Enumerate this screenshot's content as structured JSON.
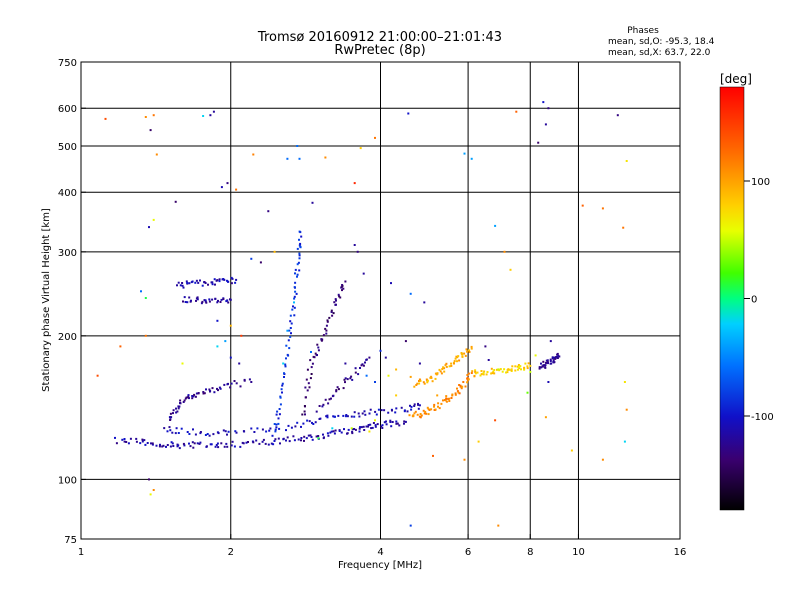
{
  "chart_data": {
    "type": "scatter",
    "title": "Tromsø 20160912 21:00:00–21:01:43",
    "subtitle": "RwPretec (8p)",
    "xlabel": "Frequency [MHz]",
    "ylabel": "Stationary phase Virtual Height [km]",
    "x_scale": "log",
    "y_scale": "log",
    "xlim": [
      1,
      16
    ],
    "ylim": [
      75,
      750
    ],
    "x_ticks": [
      1,
      2,
      4,
      6,
      8,
      10,
      16
    ],
    "x_tick_labels": [
      "1",
      "2",
      "4",
      "6",
      "8",
      "10",
      "16"
    ],
    "y_ticks": [
      75,
      100,
      200,
      300,
      400,
      500,
      600,
      750
    ],
    "y_tick_labels": [
      "75",
      "100",
      "200",
      "300",
      "400",
      "500",
      "600",
      "750"
    ],
    "grid_x": [
      2,
      4,
      6,
      8,
      10
    ],
    "grid_y": [
      100,
      200,
      300,
      400,
      500,
      600
    ],
    "stats": {
      "heading": "Phases",
      "line_o": "mean, sd,O:  -95.3, 18.4",
      "line_x": "mean, sd,X:   63.7, 22.0"
    },
    "colorbar": {
      "label": "[deg]",
      "range": [
        -180,
        180
      ],
      "ticks": [
        100,
        0,
        -100
      ],
      "tick_labels": [
        "100",
        "0",
        "-100"
      ]
    },
    "traces": [
      {
        "name": "",
        "phase": -115,
        "points": [
          [
            1.18,
            121
          ],
          [
            1.28,
            120
          ],
          [
            1.38,
            119
          ],
          [
            1.48,
            118.5
          ],
          [
            1.58,
            118
          ],
          [
            1.7,
            118
          ],
          [
            1.85,
            118
          ],
          [
            2.0,
            118.5
          ],
          [
            2.2,
            119
          ],
          [
            2.4,
            120
          ],
          [
            2.6,
            121
          ],
          [
            2.8,
            122
          ],
          [
            3.0,
            123
          ],
          [
            3.2,
            124.5
          ],
          [
            3.4,
            126
          ],
          [
            3.6,
            127.5
          ],
          [
            3.8,
            129
          ],
          [
            4.0,
            130
          ],
          [
            4.2,
            131
          ],
          [
            4.5,
            132
          ]
        ]
      },
      {
        "name": "",
        "phase": -108,
        "points": [
          [
            1.48,
            128
          ],
          [
            1.6,
            126
          ],
          [
            1.8,
            125
          ],
          [
            2.0,
            125
          ],
          [
            2.3,
            127
          ],
          [
            2.6,
            129
          ],
          [
            2.9,
            132
          ],
          [
            3.2,
            135
          ],
          [
            3.5,
            137
          ],
          [
            3.8,
            138
          ],
          [
            4.2,
            139
          ],
          [
            4.6,
            141
          ],
          [
            4.8,
            143
          ]
        ]
      },
      {
        "name": "",
        "phase": -125,
        "points": [
          [
            1.5,
            133
          ],
          [
            1.55,
            140
          ],
          [
            1.6,
            146
          ],
          [
            1.66,
            150
          ],
          [
            1.75,
            152
          ],
          [
            1.85,
            155
          ],
          [
            2.0,
            158
          ],
          [
            2.2,
            160
          ]
        ]
      },
      {
        "name": "",
        "phase": 110,
        "points": [
          [
            4.6,
            136
          ],
          [
            4.8,
            137
          ],
          [
            5.0,
            139
          ],
          [
            5.2,
            142
          ],
          [
            5.4,
            146
          ],
          [
            5.6,
            150
          ],
          [
            5.8,
            156
          ],
          [
            6.0,
            163
          ],
          [
            6.2,
            168
          ]
        ]
      },
      {
        "name": "",
        "phase": 95,
        "points": [
          [
            4.7,
            158
          ],
          [
            4.9,
            160
          ],
          [
            5.1,
            163
          ],
          [
            5.3,
            168
          ],
          [
            5.5,
            173
          ],
          [
            5.7,
            178
          ],
          [
            5.9,
            183
          ],
          [
            6.1,
            188
          ]
        ]
      },
      {
        "name": "",
        "phase": 80,
        "points": [
          [
            6.2,
            167
          ],
          [
            6.5,
            168
          ],
          [
            6.8,
            169
          ],
          [
            7.1,
            170
          ],
          [
            7.4,
            171
          ],
          [
            7.7,
            172
          ],
          [
            8.0,
            173
          ]
        ]
      },
      {
        "name": "",
        "phase": -112,
        "points": [
          [
            1.56,
            255
          ],
          [
            1.65,
            257
          ],
          [
            1.75,
            258
          ],
          [
            1.85,
            259
          ],
          [
            1.95,
            260
          ],
          [
            2.05,
            262
          ]
        ]
      },
      {
        "name": "",
        "phase": -118,
        "points": [
          [
            1.6,
            238
          ],
          [
            1.7,
            238
          ],
          [
            1.8,
            237
          ],
          [
            1.9,
            237
          ],
          [
            2.0,
            238
          ]
        ]
      },
      {
        "name": "",
        "phase": -88,
        "points": [
          [
            2.45,
            125
          ],
          [
            2.5,
            140
          ],
          [
            2.55,
            160
          ],
          [
            2.6,
            185
          ],
          [
            2.65,
            210
          ],
          [
            2.7,
            240
          ],
          [
            2.72,
            270
          ],
          [
            2.74,
            300
          ],
          [
            2.76,
            330
          ]
        ]
      },
      {
        "name": "",
        "phase": -135,
        "points": [
          [
            2.8,
            135
          ],
          [
            2.85,
            155
          ],
          [
            2.9,
            175
          ],
          [
            3.0,
            190
          ],
          [
            3.1,
            205
          ],
          [
            3.2,
            225
          ],
          [
            3.3,
            245
          ],
          [
            3.4,
            260
          ]
        ]
      },
      {
        "name": "",
        "phase": -130,
        "points": [
          [
            3.0,
            140
          ],
          [
            3.2,
            150
          ],
          [
            3.4,
            160
          ],
          [
            3.6,
            170
          ],
          [
            3.8,
            180
          ]
        ]
      },
      {
        "name": "",
        "phase": -125,
        "points": [
          [
            8.4,
            172
          ],
          [
            8.55,
            174
          ],
          [
            8.7,
            176
          ],
          [
            8.85,
            178
          ],
          [
            9.0,
            180
          ],
          [
            9.15,
            181
          ]
        ]
      }
    ],
    "scatter_points": [
      [
        1.12,
        570,
        140
      ],
      [
        1.35,
        575,
        110
      ],
      [
        1.4,
        580,
        120
      ],
      [
        1.38,
        540,
        -140
      ],
      [
        1.42,
        480,
        110
      ],
      [
        1.55,
        382,
        -140
      ],
      [
        1.37,
        338,
        -110
      ],
      [
        1.4,
        350,
        60
      ],
      [
        1.82,
        580,
        -120
      ],
      [
        1.85,
        590,
        -120
      ],
      [
        1.76,
        578,
        -20
      ],
      [
        1.92,
        410,
        -110
      ],
      [
        1.97,
        418,
        -130
      ],
      [
        2.05,
        405,
        120
      ],
      [
        2.22,
        480,
        115
      ],
      [
        2.38,
        365,
        -130
      ],
      [
        2.6,
        470,
        -60
      ],
      [
        2.72,
        500,
        -60
      ],
      [
        2.75,
        470,
        -60
      ],
      [
        2.92,
        380,
        -120
      ],
      [
        3.1,
        473,
        110
      ],
      [
        3.65,
        495,
        80
      ],
      [
        3.9,
        520,
        120
      ],
      [
        3.55,
        418,
        160
      ],
      [
        4.55,
        585,
        -100
      ],
      [
        5.9,
        482,
        -40
      ],
      [
        6.1,
        470,
        -40
      ],
      [
        7.5,
        590,
        130
      ],
      [
        8.5,
        618,
        -100
      ],
      [
        8.7,
        600,
        -130
      ],
      [
        8.3,
        508,
        -140
      ],
      [
        8.6,
        555,
        -120
      ],
      [
        12.0,
        580,
        -130
      ],
      [
        12.5,
        465,
        70
      ],
      [
        11.2,
        370,
        120
      ],
      [
        10.2,
        375,
        130
      ],
      [
        12.3,
        337,
        120
      ],
      [
        7.1,
        300,
        110
      ],
      [
        6.8,
        340,
        -40
      ],
      [
        7.3,
        275,
        80
      ],
      [
        4.6,
        245,
        -60
      ],
      [
        4.2,
        258,
        -110
      ],
      [
        4.9,
        235,
        -120
      ],
      [
        1.32,
        248,
        -60
      ],
      [
        1.35,
        240,
        10
      ],
      [
        1.08,
        165,
        140
      ],
      [
        1.2,
        190,
        130
      ],
      [
        1.35,
        200,
        120
      ],
      [
        1.6,
        175,
        60
      ],
      [
        2.0,
        210,
        90
      ],
      [
        1.88,
        190,
        -20
      ],
      [
        1.95,
        195,
        -40
      ],
      [
        2.0,
        180,
        -100
      ],
      [
        2.08,
        175,
        -120
      ],
      [
        2.1,
        200,
        150
      ],
      [
        1.88,
        215,
        -100
      ],
      [
        2.45,
        300,
        90
      ],
      [
        2.3,
        285,
        -140
      ],
      [
        2.2,
        290,
        -80
      ],
      [
        3.7,
        270,
        -120
      ],
      [
        3.6,
        300,
        -130
      ],
      [
        3.55,
        310,
        -120
      ],
      [
        4.8,
        175,
        -120
      ],
      [
        4.5,
        195,
        -140
      ],
      [
        4.1,
        180,
        -120
      ],
      [
        4.0,
        186,
        -90
      ],
      [
        4.3,
        150,
        80
      ],
      [
        4.6,
        164,
        100
      ],
      [
        4.8,
        162,
        110
      ],
      [
        5.2,
        150,
        100
      ],
      [
        5.5,
        146,
        110
      ],
      [
        5.7,
        155,
        110
      ],
      [
        6.5,
        190,
        -130
      ],
      [
        6.6,
        178,
        -120
      ],
      [
        6.9,
        170,
        50
      ],
      [
        7.6,
        172,
        60
      ],
      [
        8.0,
        168,
        50
      ],
      [
        7.9,
        152,
        30
      ],
      [
        8.7,
        160,
        -110
      ],
      [
        8.8,
        195,
        -120
      ],
      [
        8.2,
        182,
        60
      ],
      [
        6.8,
        133,
        140
      ],
      [
        6.3,
        120,
        80
      ],
      [
        5.1,
        112,
        130
      ],
      [
        5.9,
        110,
        110
      ],
      [
        4.6,
        80,
        -80
      ],
      [
        6.9,
        80,
        110
      ],
      [
        1.37,
        100,
        -140
      ],
      [
        1.38,
        93,
        60
      ],
      [
        1.4,
        95,
        110
      ],
      [
        12.4,
        120,
        -20
      ],
      [
        11.2,
        110,
        110
      ],
      [
        9.7,
        115,
        80
      ],
      [
        8.6,
        135,
        100
      ],
      [
        12.5,
        140,
        110
      ],
      [
        12.4,
        160,
        70
      ],
      [
        3.5,
        128,
        50
      ],
      [
        3.8,
        126,
        70
      ],
      [
        3.9,
        133,
        60
      ],
      [
        3.2,
        128,
        -20
      ],
      [
        3.0,
        122,
        10
      ],
      [
        2.9,
        185,
        -60
      ],
      [
        2.55,
        175,
        -20
      ],
      [
        2.6,
        205,
        -40
      ],
      [
        2.68,
        235,
        -30
      ],
      [
        3.4,
        175,
        -120
      ],
      [
        3.75,
        165,
        -60
      ],
      [
        3.9,
        160,
        -80
      ],
      [
        4.15,
        165,
        60
      ],
      [
        4.3,
        170,
        90
      ]
    ]
  }
}
